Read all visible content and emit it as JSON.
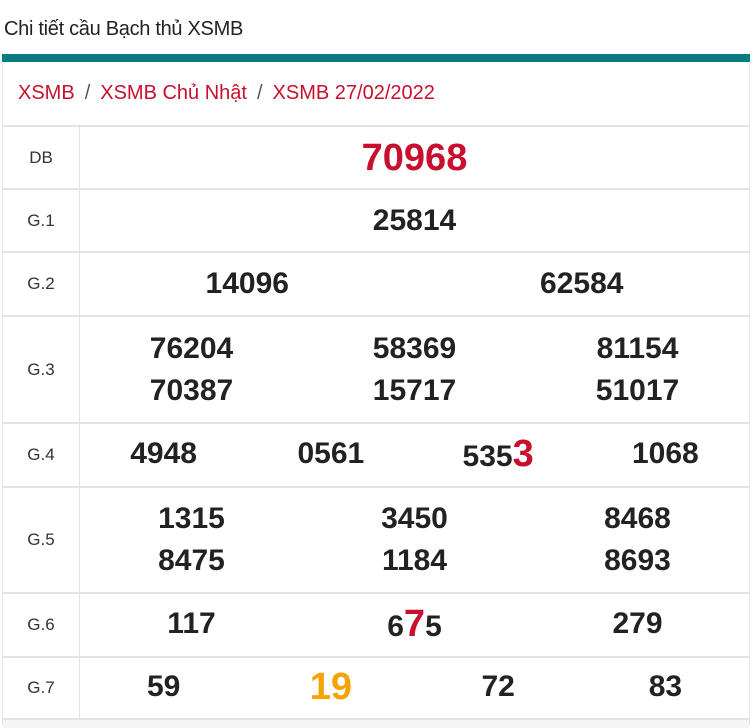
{
  "header": {
    "title": "Chi tiết cầu Bạch thủ XSMB"
  },
  "colors": {
    "accent": "#0a7c80",
    "highlight_red": "#c8102e",
    "highlight_orange": "#f5a300"
  },
  "breadcrumb": [
    {
      "label": "XSMB"
    },
    {
      "label": "XSMB Chủ Nhật"
    },
    {
      "label": "XSMB 27/02/2022"
    }
  ],
  "breadcrumb_separator": "/",
  "prizes": [
    {
      "label": "DB",
      "cols": 1,
      "height": 63,
      "numbers": [
        [
          {
            "t": "70968"
          }
        ]
      ]
    },
    {
      "label": "G.1",
      "cols": 1,
      "height": 63,
      "numbers": [
        [
          {
            "t": "25814"
          }
        ]
      ]
    },
    {
      "label": "G.2",
      "cols": 2,
      "height": 64,
      "numbers": [
        [
          {
            "t": "14096"
          }
        ],
        [
          {
            "t": "62584"
          }
        ]
      ]
    },
    {
      "label": "G.3",
      "cols": 3,
      "height": 107,
      "numbers": [
        [
          {
            "t": "76204"
          }
        ],
        [
          {
            "t": "58369"
          }
        ],
        [
          {
            "t": "81154"
          }
        ],
        [
          {
            "t": "70387"
          }
        ],
        [
          {
            "t": "15717"
          }
        ],
        [
          {
            "t": "51017"
          }
        ]
      ]
    },
    {
      "label": "G.4",
      "cols": 4,
      "height": 64,
      "numbers": [
        [
          {
            "t": "4948"
          }
        ],
        [
          {
            "t": "0561"
          }
        ],
        [
          {
            "t": "535"
          },
          {
            "t": "3",
            "hl": "red"
          }
        ],
        [
          {
            "t": "1068"
          }
        ]
      ]
    },
    {
      "label": "G.5",
      "cols": 3,
      "height": 106,
      "numbers": [
        [
          {
            "t": "1315"
          }
        ],
        [
          {
            "t": "3450"
          }
        ],
        [
          {
            "t": "8468"
          }
        ],
        [
          {
            "t": "8475"
          }
        ],
        [
          {
            "t": "1184"
          }
        ],
        [
          {
            "t": "8693"
          }
        ]
      ]
    },
    {
      "label": "G.6",
      "cols": 3,
      "height": 64,
      "numbers": [
        [
          {
            "t": "117"
          }
        ],
        [
          {
            "t": "6"
          },
          {
            "t": "7",
            "hl": "red"
          },
          {
            "t": "5"
          }
        ],
        [
          {
            "t": "279"
          }
        ]
      ]
    },
    {
      "label": "G.7",
      "cols": 4,
      "height": 62,
      "numbers": [
        [
          {
            "t": "59"
          }
        ],
        [
          {
            "t": "19",
            "hl": "orange"
          }
        ],
        [
          {
            "t": "72"
          }
        ],
        [
          {
            "t": "83"
          }
        ]
      ]
    }
  ]
}
